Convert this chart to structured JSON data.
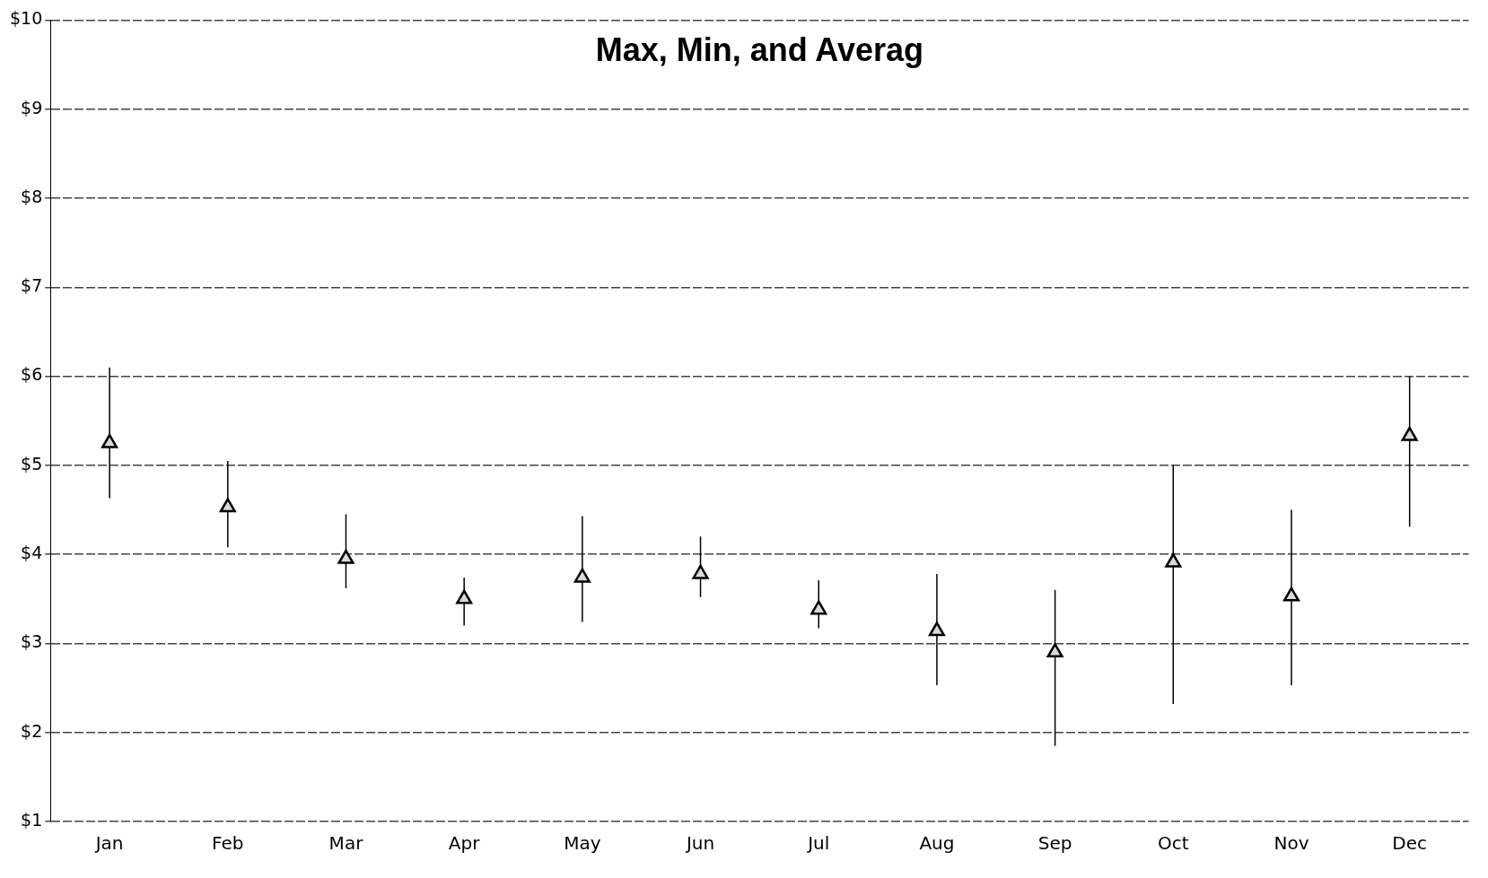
{
  "chart_data": {
    "type": "scatter",
    "title": "Max, Min, and Averag",
    "categories": [
      "Jan",
      "Feb",
      "Mar",
      "Apr",
      "May",
      "Jun",
      "Jul",
      "Aug",
      "Sep",
      "Oct",
      "Nov",
      "Dec"
    ],
    "series": [
      {
        "color": "#000000",
        "values": [
          5.25,
          4.53,
          3.95,
          3.5,
          3.74,
          3.78,
          3.38,
          3.14,
          2.9,
          3.91,
          3.53,
          5.33
        ],
        "errors": [
          [
            4.63,
            6.1
          ],
          [
            4.08,
            5.05
          ],
          [
            3.62,
            4.45
          ],
          [
            3.2,
            3.74
          ],
          [
            3.24,
            4.43
          ],
          [
            3.52,
            4.2
          ],
          [
            3.17,
            3.71
          ],
          [
            2.53,
            3.78
          ],
          [
            1.85,
            3.6
          ],
          [
            2.32,
            5.0
          ],
          [
            2.53,
            4.5
          ],
          [
            4.31,
            6.0
          ]
        ]
      }
    ],
    "ylim": [
      1,
      10
    ],
    "yticks": [
      {
        "value": 1,
        "label": "$1"
      },
      {
        "value": 2,
        "label": "$2"
      },
      {
        "value": 3,
        "label": "$3"
      },
      {
        "value": 4,
        "label": "$4"
      },
      {
        "value": 5,
        "label": "$5"
      },
      {
        "value": 6,
        "label": "$6"
      },
      {
        "value": 7,
        "label": "$7"
      },
      {
        "value": 8,
        "label": "$8"
      },
      {
        "value": 9,
        "label": "$9"
      },
      {
        "value": 10,
        "label": "$10"
      }
    ],
    "grid": "y",
    "marker": "triangle",
    "legend": false
  }
}
